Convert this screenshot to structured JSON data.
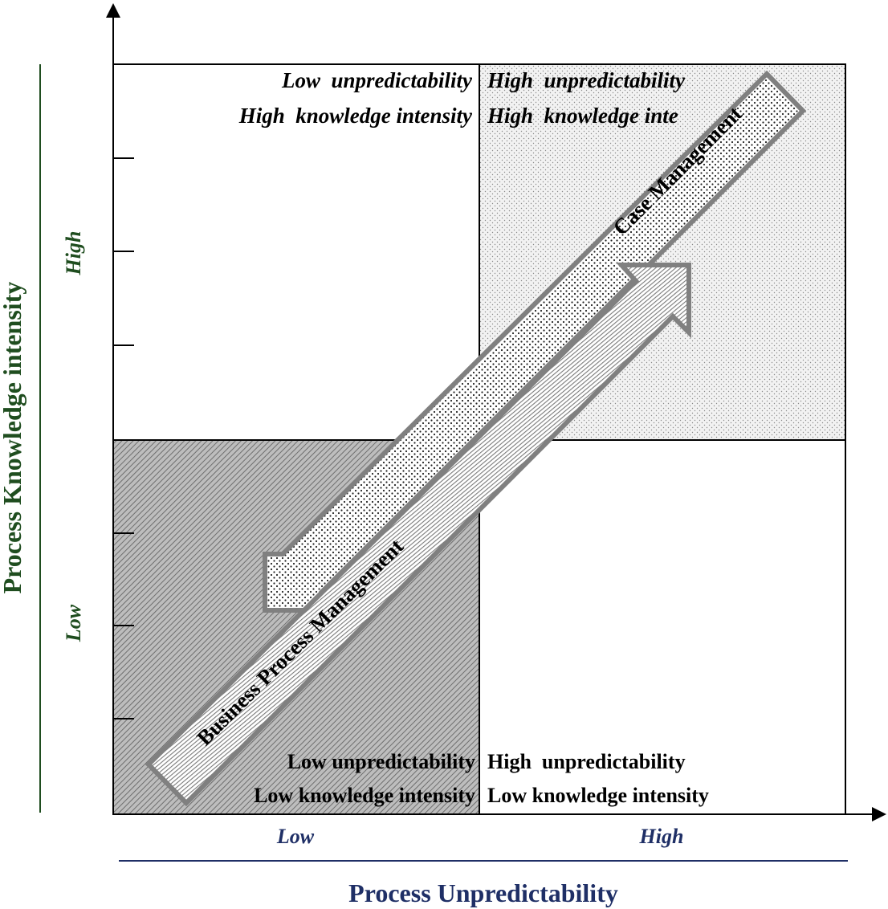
{
  "axes": {
    "x_title": "Process Unpredictability",
    "x_low": "Low",
    "x_high": "High",
    "y_title": "Process Knowledge intensity",
    "y_low": "Low",
    "y_high": "High"
  },
  "quadrants": {
    "top_left": [
      "Low  unpredictability",
      "High  knowledge intensity"
    ],
    "top_right": [
      "High  unpredictability",
      "High  knowledge inte"
    ],
    "bottom_left": [
      "Low unpredictability",
      "Low knowledge intensity"
    ],
    "bottom_right": [
      "High  unpredictability",
      "Low knowledge intensity"
    ]
  },
  "arrows": {
    "case_management": "Case Management",
    "bpm": "Business Process  Management"
  },
  "colors": {
    "y_axis_text": "#1f4d1f",
    "x_axis_text": "#1f2f66",
    "arrow_outline": "#808080",
    "quadrant_fill": "#d9d9d9"
  }
}
